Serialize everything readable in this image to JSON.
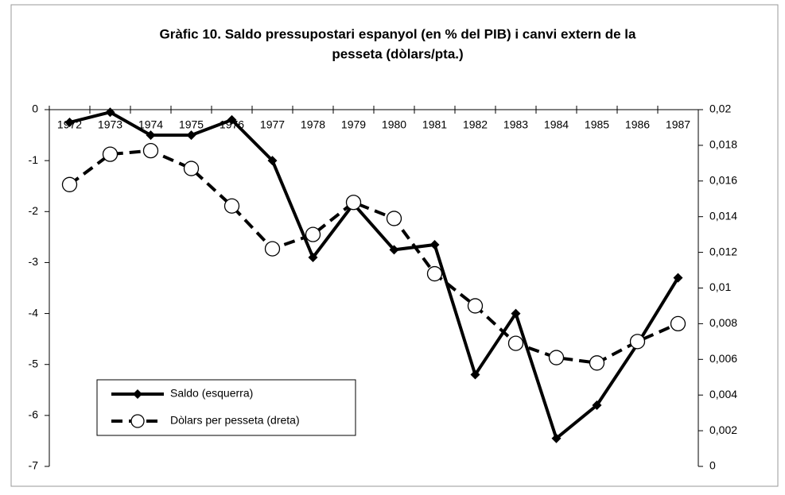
{
  "chart_data": {
    "type": "line",
    "title": [
      "Gràfic 10. Saldo pressupostari espanyol (en % del PIB) i canvi extern de la",
      "pesseta (dòlars/pta.)"
    ],
    "categories": [
      "1972",
      "1973",
      "1974",
      "1975",
      "1976",
      "1977",
      "1978",
      "1979",
      "1980",
      "1981",
      "1982",
      "1983",
      "1984",
      "1985",
      "1986",
      "1987"
    ],
    "series": [
      {
        "name": "Saldo (esquerra)",
        "color": "#000000",
        "line_style": "solid",
        "marker": "diamond",
        "values": [
          -0.25,
          -0.05,
          -0.5,
          -0.5,
          -0.2,
          -1.0,
          -2.9,
          -1.85,
          -2.75,
          -2.65,
          -5.2,
          -4.0,
          -6.45,
          -5.8,
          -4.6,
          -3.3
        ]
      },
      {
        "name": "Dòlars per pesseta (dreta)",
        "color": "#000000",
        "line_style": "dashed",
        "marker": "circle",
        "axis": "y2",
        "values": [
          0.0158,
          0.0175,
          0.0177,
          0.0167,
          0.0146,
          0.0122,
          0.013,
          0.0148,
          0.0139,
          0.0108,
          0.009,
          0.0069,
          0.0061,
          0.0058,
          0.007,
          0.008
        ]
      }
    ],
    "ylim": [
      -7,
      0
    ],
    "yticks": [
      0,
      -1,
      -2,
      -3,
      -4,
      -5,
      -6,
      -7
    ],
    "y2lim": [
      0,
      0.02
    ],
    "y2ticks": [
      {
        "value": 0.02,
        "label": "0,02"
      },
      {
        "value": 0.018,
        "label": "0,018"
      },
      {
        "value": 0.016,
        "label": "0,016"
      },
      {
        "value": 0.014,
        "label": "0,014"
      },
      {
        "value": 0.012,
        "label": "0,012"
      },
      {
        "value": 0.01,
        "label": "0,01"
      },
      {
        "value": 0.008,
        "label": "0,008"
      },
      {
        "value": 0.006,
        "label": "0,006"
      },
      {
        "value": 0.004,
        "label": "0,004"
      },
      {
        "value": 0.002,
        "label": "0,002"
      },
      0
    ],
    "grid": false,
    "legend": "lower left"
  }
}
